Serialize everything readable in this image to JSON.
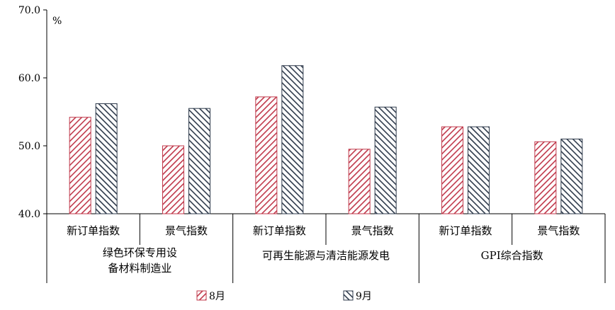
{
  "chart_data": {
    "type": "bar",
    "unit_label": "%",
    "ylim": [
      40,
      70
    ],
    "yticks": [
      "40.0",
      "50.0",
      "60.0",
      "70.0"
    ],
    "grid": false,
    "legend_position": "bottom",
    "categories": [
      "新订单指数",
      "景气指数",
      "新订单指数",
      "景气指数",
      "新订单指数",
      "景气指数"
    ],
    "groups": [
      {
        "label_lines": [
          "绿色环保专用设",
          "备材料制造业"
        ],
        "span": 2
      },
      {
        "label_lines": [
          "可再生能源与清洁能源发电"
        ],
        "span": 2
      },
      {
        "label_lines": [
          "GPI综合指数"
        ],
        "span": 2
      }
    ],
    "series": [
      {
        "name": "8月",
        "color": "#c0394b",
        "values": [
          54.2,
          50.0,
          57.2,
          49.5,
          52.8,
          50.6
        ]
      },
      {
        "name": "9月",
        "color": "#2e3a4b",
        "values": [
          56.2,
          55.5,
          61.8,
          55.7,
          52.8,
          51.0
        ]
      }
    ]
  }
}
